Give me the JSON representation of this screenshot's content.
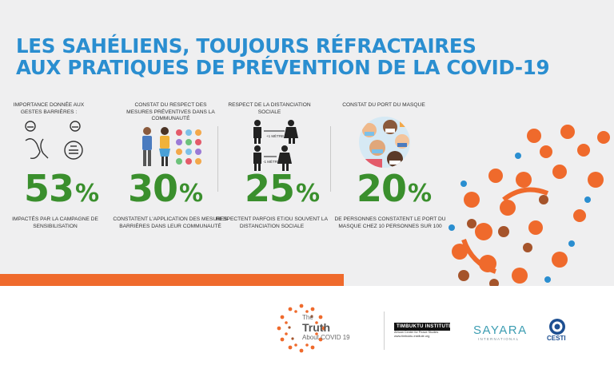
{
  "title": {
    "line1": "LES SAHÉLIENS, TOUJOURS RÉFRACTAIRES",
    "line2": "AUX PRATIQUES DE PRÉVENTION DE LA COVID-19"
  },
  "stats": [
    {
      "header": "IMPORTANCE DONNÉE AUX GESTES BARRIÈRES :",
      "value": "53",
      "unit": "%",
      "caption": "IMPACTÉS PAR LA CAMPAGNE DE SENSIBILISATION"
    },
    {
      "header": "CONSTAT DU RESPECT DES MESURES PRÉVENTIVES DANS LA COMMUNAUTÉ",
      "value": "30",
      "unit": "%",
      "caption": "CONSTATENT L'APPLICATION DES MESURES BARRIÈRES DANS LEUR COMMUNAUTÉ"
    },
    {
      "header": "RESPECT DE LA DISTANCIATION SOCIALE",
      "value": "25",
      "unit": "%",
      "caption": "RESPECTENT PARFOIS ET/OU SOUVENT LA DISTANCIATION SOCIALE",
      "distance_top": "+1 MÈTRE",
      "distance_bottom": "-1 MÈTRE"
    },
    {
      "header": "CONSTAT DU PORT DU MASQUE",
      "value": "20",
      "unit": "%",
      "caption": "DE PERSONNES CONSTATENT LE PORT DU MASQUE CHEZ 10 PERSONNES SUR 100"
    }
  ],
  "footer": {
    "truth_the": "The",
    "truth_main": "Truth",
    "truth_about": "About COVID 19",
    "timbuktu_name": "TIMBUKTU INSTITUTE",
    "timbuktu_line1": "African Center for Peace Studies",
    "timbuktu_line2": "www.timbuktu-institute.org",
    "sayara": "SAYARA",
    "sayara_sub": "INTERNATIONAL",
    "cesti": "CESTI"
  },
  "colors": {
    "title_blue": "#2a8ed0",
    "stat_green": "#3a8f2d",
    "accent_orange": "#ef6a2c",
    "dot_brown": "#a5542b",
    "dot_blue": "#2a8ed0",
    "panel_gray": "#efeff0"
  },
  "icons": [
    "hands-washing-icon",
    "people-icon",
    "preventive-measures-icon",
    "distancing-icon",
    "masked-crowd-icon",
    "decorative-virus-dots-icon"
  ]
}
